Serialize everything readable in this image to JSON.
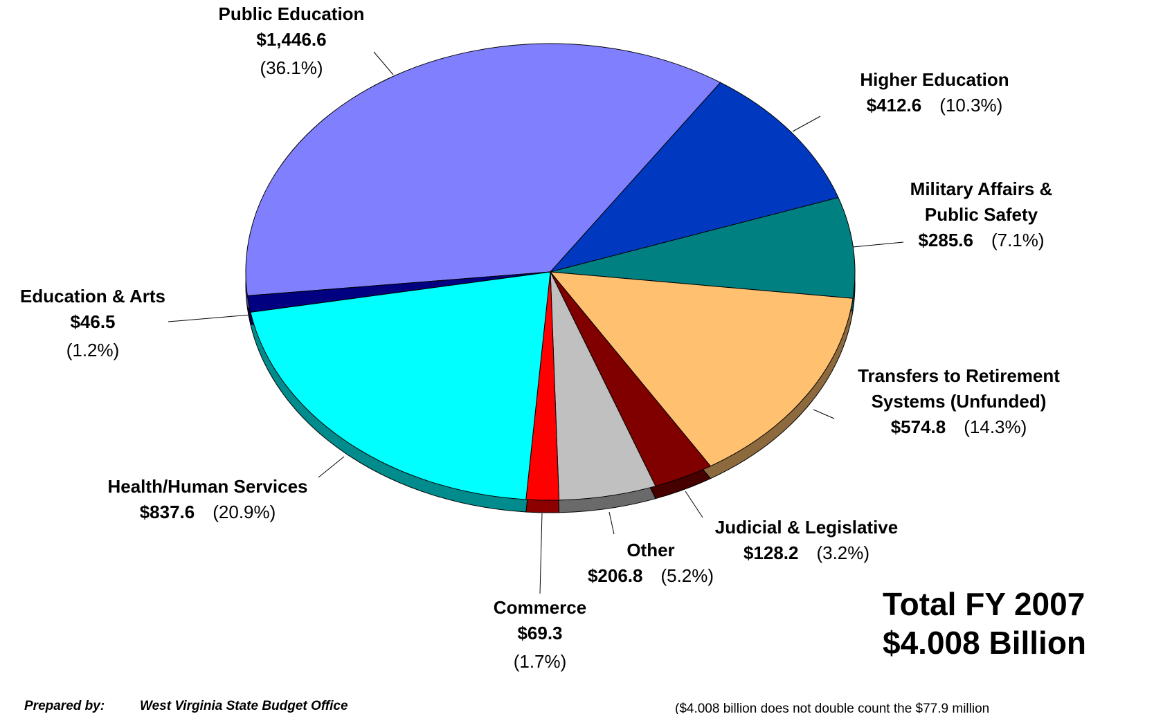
{
  "chart_data": {
    "type": "pie",
    "categories": [
      "Public Education",
      "Higher Education",
      "Military Affairs & Public Safety",
      "Transfers to Retirement Systems (Unfunded)",
      "Judicial & Legislative",
      "Other",
      "Commerce",
      "Health/Human Services",
      "Education & Arts"
    ],
    "values": [
      1446.6,
      412.6,
      285.6,
      574.8,
      128.2,
      206.8,
      69.3,
      837.6,
      46.5
    ],
    "value_labels": [
      "$1,446.6",
      "$412.6",
      "$285.6",
      "$574.8",
      "$128.2",
      "$206.8",
      "$69.3",
      "$837.6",
      "$46.5"
    ],
    "percentages": [
      36.1,
      10.3,
      7.1,
      14.3,
      3.2,
      5.2,
      1.7,
      20.9,
      1.2
    ],
    "percentage_labels": [
      "(36.1%)",
      "(10.3%)",
      "(7.1%)",
      "(14.3%)",
      "(3.2%)",
      "(5.2%)",
      "(1.7%)",
      "(20.9%)",
      "(1.2%)"
    ],
    "colors": [
      "#8080ff",
      "#0039c0",
      "#008080",
      "#ffc070",
      "#800000",
      "#c0c0c0",
      "#ff0000",
      "#00ffff",
      "#000080"
    ],
    "total_title": "Total FY 2007",
    "total_value": "$4.008 Billion",
    "footnote": "($4.008 billion does not double count the $77.9 million",
    "prepared_by_label": "Prepared by:",
    "prepared_by": "West Virginia State Budget Office"
  }
}
